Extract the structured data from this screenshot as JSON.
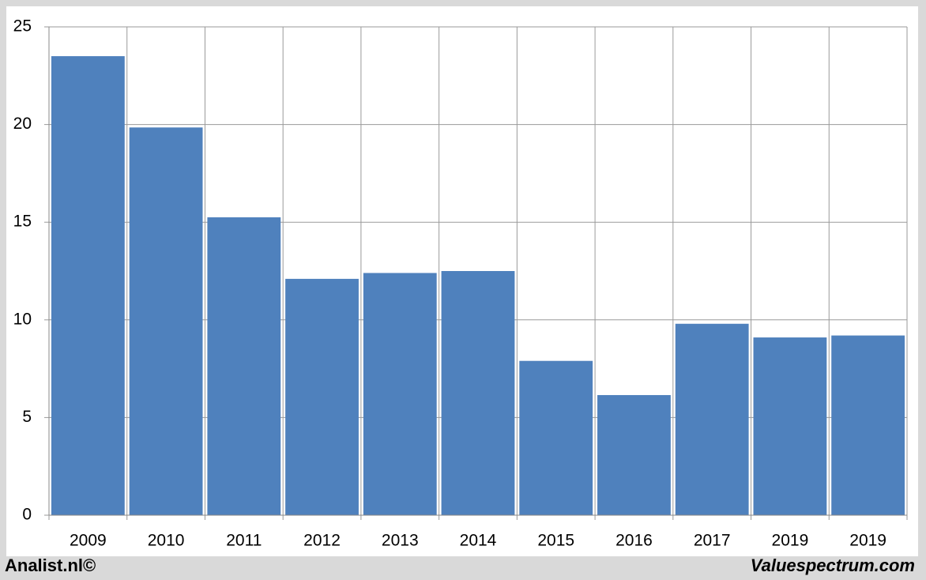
{
  "chart_data": {
    "type": "bar",
    "categories": [
      "2009",
      "2010",
      "2011",
      "2012",
      "2013",
      "2014",
      "2015",
      "2016",
      "2017",
      "2019",
      "2019"
    ],
    "values": [
      23.5,
      19.85,
      15.25,
      12.1,
      12.4,
      12.5,
      7.9,
      6.15,
      9.8,
      9.1,
      9.2
    ],
    "color": "#4f81bd",
    "ylim": [
      0,
      25
    ],
    "yticks": [
      0,
      5,
      10,
      15,
      20,
      25
    ],
    "grid": true,
    "footer_left": "Analist.nl©",
    "footer_right": "Valuespectrum.com"
  }
}
